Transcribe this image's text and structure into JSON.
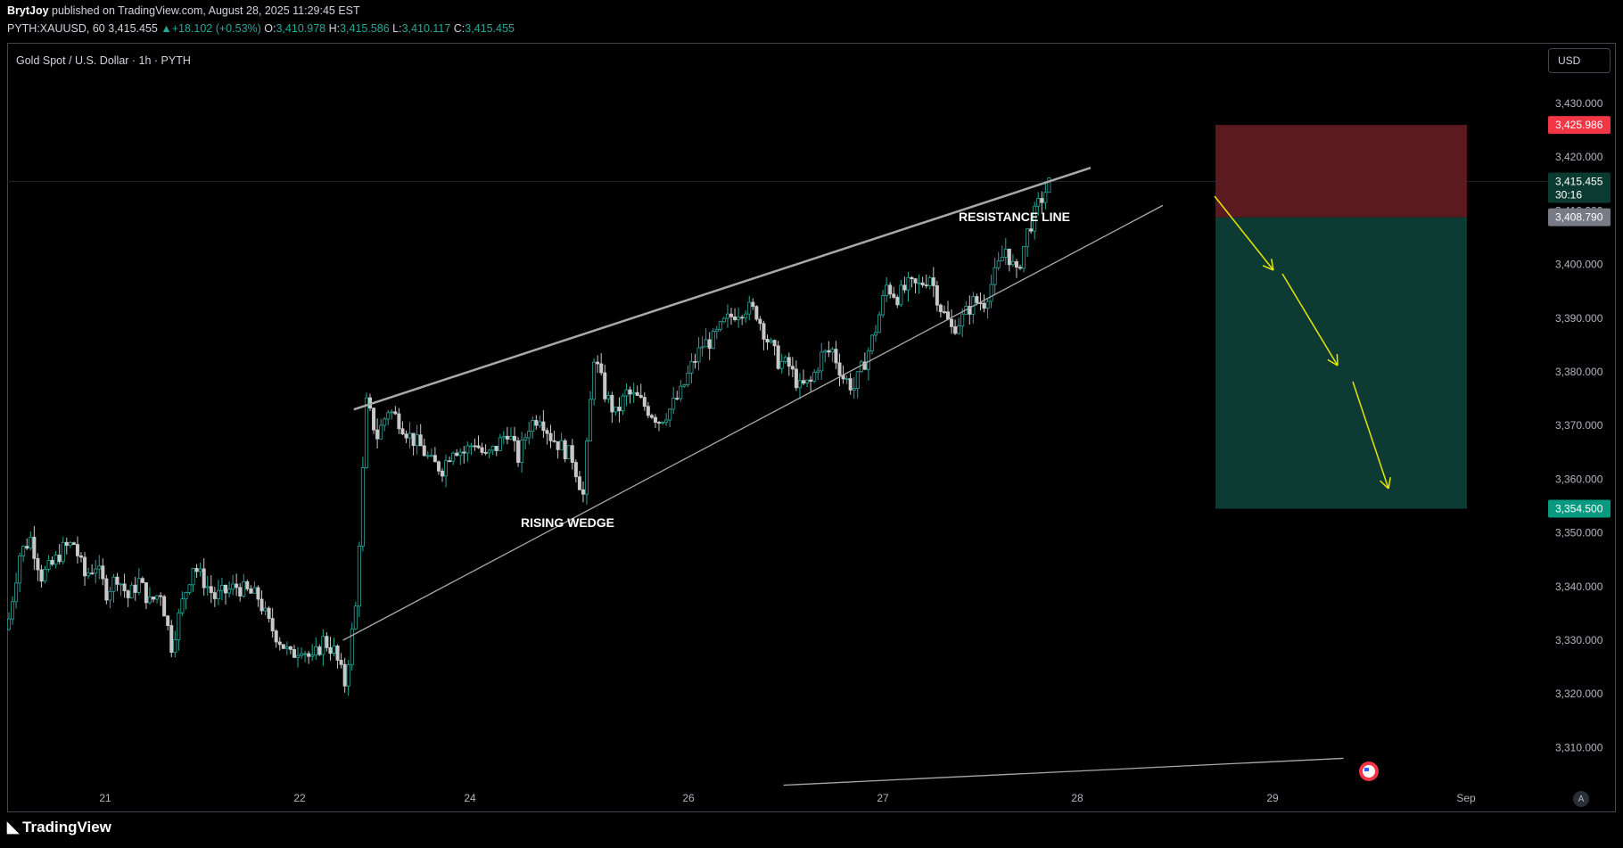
{
  "header": {
    "author": "BrytJoy",
    "published_text": "published on TradingView.com, August 28, 2025 11:29:45 EST"
  },
  "ohlc": {
    "symbol": "PYTH:XAUUSD, 60",
    "last": "3,415.455",
    "change": "+18.102 (+0.53%)",
    "o_label": "O:",
    "o": "3,410.978",
    "h_label": "H:",
    "h": "3,415.586",
    "l_label": "L:",
    "l": "3,410.117",
    "c_label": "C:",
    "c": "3,415.455"
  },
  "legend_title": "Gold Spot / U.S. Dollar · 1h · PYTH",
  "currency_button": "USD",
  "annotations": {
    "resistance": "RESISTANCE LINE",
    "wedge": "RISING WEDGE"
  },
  "price_labels": {
    "stop": "3,425.986",
    "current": "3,415.455",
    "countdown": "30:16",
    "entry": "3,408.790",
    "target": "3,354.500"
  },
  "colors": {
    "up": "#26a69a",
    "down": "#c8c8c8",
    "stop_zone": "#5a1a1f",
    "target_zone": "#0d3b33",
    "stop_label": "#f23645",
    "target_label": "#089981",
    "entry_label": "#787b86",
    "arrow": "#e6e600"
  },
  "footer": {
    "logo": "TradingView",
    "auto": "A"
  },
  "chart_data": {
    "type": "candlestick",
    "ylim": [
      3300,
      3435
    ],
    "yticks": [
      "3,430.000",
      "3,420.000",
      "3,410.000",
      "3,400.000",
      "3,390.000",
      "3,380.000",
      "3,370.000",
      "3,360.000",
      "3,350.000",
      "3,340.000",
      "3,330.000",
      "3,320.000",
      "3,310.000"
    ],
    "ytick_values": [
      3430,
      3420,
      3410,
      3400,
      3390,
      3380,
      3370,
      3360,
      3350,
      3340,
      3330,
      3320,
      3310
    ],
    "xticks": [
      "21",
      "22",
      "24",
      "26",
      "27",
      "28",
      "29",
      "Sep"
    ],
    "close_path": [
      [
        0,
        3334
      ],
      [
        3,
        3346
      ],
      [
        6,
        3349
      ],
      [
        9,
        3342
      ],
      [
        12,
        3344
      ],
      [
        15,
        3347
      ],
      [
        18,
        3348
      ],
      [
        21,
        3342
      ],
      [
        24,
        3344
      ],
      [
        27,
        3339
      ],
      [
        30,
        3342
      ],
      [
        33,
        3338
      ],
      [
        36,
        3341
      ],
      [
        39,
        3337
      ],
      [
        42,
        3339
      ],
      [
        45,
        3329
      ],
      [
        48,
        3337
      ],
      [
        51,
        3344
      ],
      [
        54,
        3341
      ],
      [
        57,
        3338
      ],
      [
        60,
        3339
      ],
      [
        63,
        3340
      ],
      [
        66,
        3339
      ],
      [
        69,
        3338
      ],
      [
        72,
        3333
      ],
      [
        75,
        3330
      ],
      [
        78,
        3327
      ],
      [
        81,
        3329
      ],
      [
        84,
        3326
      ],
      [
        87,
        3330
      ],
      [
        90,
        3328
      ],
      [
        93,
        3322
      ],
      [
        96,
        3336
      ],
      [
        99,
        3374
      ],
      [
        102,
        3368
      ],
      [
        105,
        3373
      ],
      [
        108,
        3371
      ],
      [
        111,
        3368
      ],
      [
        114,
        3366
      ],
      [
        117,
        3363
      ],
      [
        120,
        3362
      ],
      [
        123,
        3366
      ],
      [
        126,
        3365
      ],
      [
        129,
        3367
      ],
      [
        132,
        3364
      ],
      [
        135,
        3366
      ],
      [
        138,
        3369
      ],
      [
        141,
        3364
      ],
      [
        144,
        3370
      ],
      [
        147,
        3372
      ],
      [
        150,
        3368
      ],
      [
        153,
        3366
      ],
      [
        156,
        3364
      ],
      [
        159,
        3357
      ],
      [
        162,
        3383
      ],
      [
        165,
        3376
      ],
      [
        168,
        3372
      ],
      [
        171,
        3376
      ],
      [
        174,
        3375
      ],
      [
        177,
        3373
      ],
      [
        180,
        3371
      ],
      [
        183,
        3373
      ],
      [
        186,
        3376
      ],
      [
        189,
        3381
      ],
      [
        192,
        3385
      ],
      [
        195,
        3386
      ],
      [
        198,
        3389
      ],
      [
        201,
        3391
      ],
      [
        204,
        3392
      ],
      [
        207,
        3391
      ],
      [
        210,
        3386
      ],
      [
        213,
        3382
      ],
      [
        216,
        3381
      ],
      [
        219,
        3377
      ],
      [
        222,
        3378
      ],
      [
        225,
        3383
      ],
      [
        228,
        3384
      ],
      [
        231,
        3379
      ],
      [
        234,
        3377
      ],
      [
        237,
        3382
      ],
      [
        240,
        3388
      ],
      [
        243,
        3396
      ],
      [
        246,
        3394
      ],
      [
        249,
        3396
      ],
      [
        252,
        3396
      ],
      [
        255,
        3398
      ],
      [
        258,
        3392
      ],
      [
        261,
        3388
      ],
      [
        264,
        3390
      ],
      [
        267,
        3393
      ],
      [
        270,
        3393
      ],
      [
        273,
        3398
      ],
      [
        276,
        3403
      ],
      [
        279,
        3398
      ],
      [
        282,
        3406
      ],
      [
        285,
        3411
      ],
      [
        288,
        3415
      ]
    ],
    "trendlines": [
      {
        "name": "resistance",
        "from": [
          96,
          3373
        ],
        "to": [
          300,
          3418
        ]
      },
      {
        "name": "support",
        "from": [
          93,
          3330
        ],
        "to": [
          320,
          3411
        ]
      },
      {
        "name": "lower",
        "from": [
          215,
          3303
        ],
        "to": [
          370,
          3308
        ]
      }
    ],
    "position": {
      "entry": 3408.79,
      "stop": 3425.986,
      "target": 3354.5
    }
  }
}
